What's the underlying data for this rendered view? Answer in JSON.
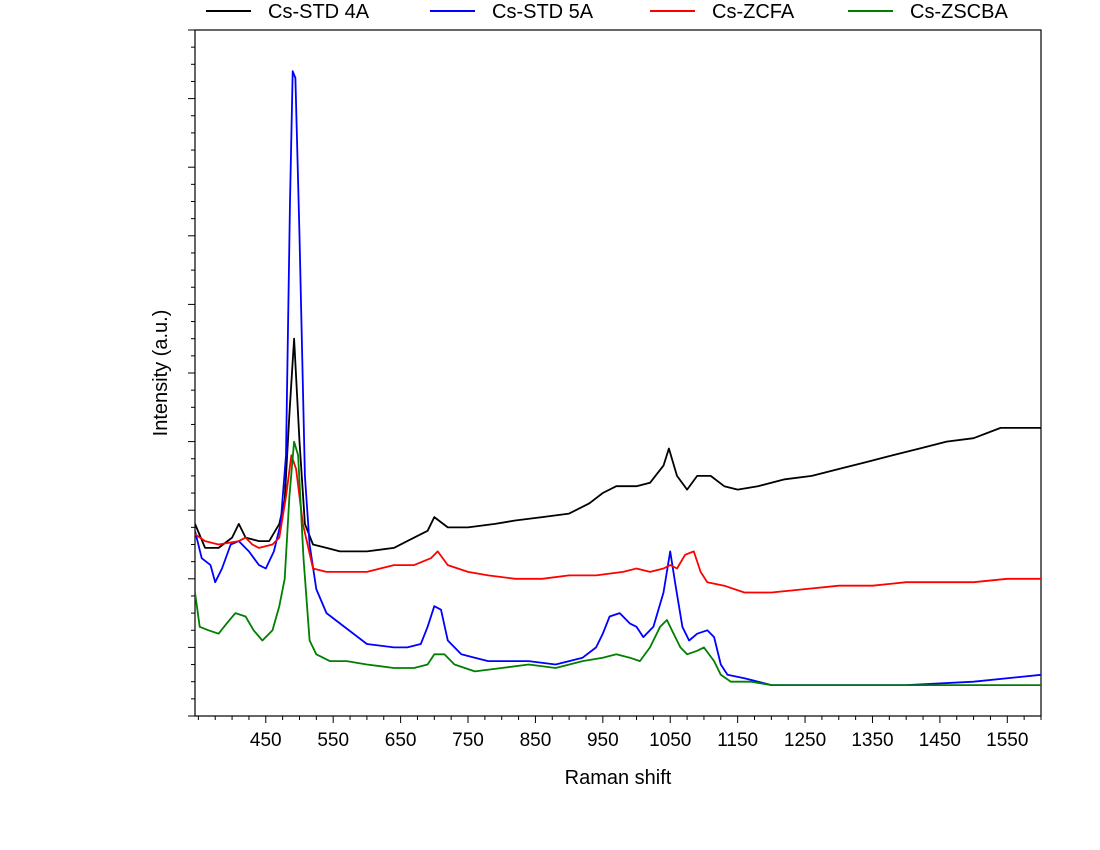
{
  "chart_data": {
    "type": "line",
    "xlabel": "Raman shift",
    "ylabel": "Intensity (a.u.)",
    "xlim": [
      345,
      1600
    ],
    "ylim": [
      0,
      100
    ],
    "x_ticks": [
      450,
      550,
      650,
      750,
      850,
      950,
      1050,
      1150,
      1250,
      1350,
      1450,
      1550
    ],
    "x_tick_labels": [
      "450",
      "550",
      "650",
      "750",
      "850",
      "950",
      "1050",
      "1150",
      "1250",
      "1350",
      "1450",
      "1550"
    ],
    "y_tick_labels": "none",
    "grid": false,
    "legend_position": "top",
    "series": [
      {
        "name": "Cs-STD 4A",
        "color": "#000000",
        "points": [
          [
            345,
            28
          ],
          [
            360,
            24.5
          ],
          [
            380,
            24.5
          ],
          [
            400,
            26
          ],
          [
            410,
            28
          ],
          [
            420,
            26
          ],
          [
            440,
            25.5
          ],
          [
            455,
            25.5
          ],
          [
            470,
            28
          ],
          [
            478,
            31.5
          ],
          [
            485,
            44
          ],
          [
            492,
            55
          ],
          [
            500,
            40
          ],
          [
            508,
            28
          ],
          [
            520,
            25
          ],
          [
            540,
            24.5
          ],
          [
            560,
            24
          ],
          [
            600,
            24
          ],
          [
            640,
            24.5
          ],
          [
            660,
            25.5
          ],
          [
            690,
            27
          ],
          [
            700,
            29
          ],
          [
            720,
            27.5
          ],
          [
            750,
            27.5
          ],
          [
            790,
            28
          ],
          [
            820,
            28.5
          ],
          [
            860,
            29
          ],
          [
            900,
            29.5
          ],
          [
            930,
            31
          ],
          [
            950,
            32.5
          ],
          [
            970,
            33.5
          ],
          [
            1000,
            33.5
          ],
          [
            1020,
            34
          ],
          [
            1040,
            36.5
          ],
          [
            1048,
            39
          ],
          [
            1060,
            35
          ],
          [
            1075,
            33
          ],
          [
            1090,
            35
          ],
          [
            1110,
            35
          ],
          [
            1130,
            33.5
          ],
          [
            1150,
            33
          ],
          [
            1180,
            33.5
          ],
          [
            1220,
            34.5
          ],
          [
            1260,
            35
          ],
          [
            1300,
            36
          ],
          [
            1340,
            37
          ],
          [
            1380,
            38
          ],
          [
            1420,
            39
          ],
          [
            1460,
            40
          ],
          [
            1500,
            40.5
          ],
          [
            1540,
            42
          ],
          [
            1570,
            42
          ],
          [
            1600,
            42
          ]
        ]
      },
      {
        "name": "Cs-STD 5A",
        "color": "#0000ff",
        "points": [
          [
            345,
            27
          ],
          [
            355,
            23
          ],
          [
            368,
            22
          ],
          [
            375,
            19.5
          ],
          [
            385,
            21.5
          ],
          [
            398,
            25
          ],
          [
            410,
            25.5
          ],
          [
            425,
            24
          ],
          [
            440,
            22
          ],
          [
            450,
            21.5
          ],
          [
            462,
            24
          ],
          [
            472,
            28
          ],
          [
            480,
            38
          ],
          [
            486,
            75
          ],
          [
            490,
            94
          ],
          [
            494,
            93
          ],
          [
            500,
            70
          ],
          [
            508,
            35
          ],
          [
            515,
            25
          ],
          [
            525,
            18.5
          ],
          [
            540,
            15
          ],
          [
            560,
            13.5
          ],
          [
            600,
            10.5
          ],
          [
            640,
            10
          ],
          [
            660,
            10
          ],
          [
            680,
            10.5
          ],
          [
            690,
            13
          ],
          [
            700,
            16
          ],
          [
            710,
            15.5
          ],
          [
            720,
            11
          ],
          [
            740,
            9
          ],
          [
            760,
            8.5
          ],
          [
            780,
            8
          ],
          [
            800,
            8
          ],
          [
            840,
            8
          ],
          [
            880,
            7.5
          ],
          [
            900,
            8
          ],
          [
            920,
            8.5
          ],
          [
            940,
            10
          ],
          [
            950,
            12
          ],
          [
            960,
            14.5
          ],
          [
            975,
            15
          ],
          [
            990,
            13.5
          ],
          [
            1000,
            13
          ],
          [
            1010,
            11.5
          ],
          [
            1025,
            13
          ],
          [
            1040,
            18
          ],
          [
            1050,
            24
          ],
          [
            1058,
            19
          ],
          [
            1068,
            13
          ],
          [
            1078,
            11
          ],
          [
            1090,
            12
          ],
          [
            1105,
            12.5
          ],
          [
            1115,
            11.5
          ],
          [
            1125,
            7.5
          ],
          [
            1135,
            6
          ],
          [
            1160,
            5.5
          ],
          [
            1200,
            4.5
          ],
          [
            1300,
            4.5
          ],
          [
            1400,
            4.5
          ],
          [
            1500,
            5
          ],
          [
            1600,
            6
          ]
        ]
      },
      {
        "name": "Cs-ZCFA",
        "color": "#ff0000",
        "points": [
          [
            345,
            26.5
          ],
          [
            360,
            25.5
          ],
          [
            380,
            25
          ],
          [
            410,
            25.5
          ],
          [
            420,
            26
          ],
          [
            430,
            25
          ],
          [
            440,
            24.5
          ],
          [
            460,
            25
          ],
          [
            470,
            26
          ],
          [
            480,
            32
          ],
          [
            488,
            38
          ],
          [
            495,
            36
          ],
          [
            505,
            28
          ],
          [
            520,
            21.5
          ],
          [
            540,
            21
          ],
          [
            560,
            21
          ],
          [
            600,
            21
          ],
          [
            640,
            22
          ],
          [
            670,
            22
          ],
          [
            695,
            23
          ],
          [
            705,
            24
          ],
          [
            720,
            22
          ],
          [
            750,
            21
          ],
          [
            780,
            20.5
          ],
          [
            820,
            20
          ],
          [
            860,
            20
          ],
          [
            900,
            20.5
          ],
          [
            940,
            20.5
          ],
          [
            980,
            21
          ],
          [
            1000,
            21.5
          ],
          [
            1020,
            21
          ],
          [
            1040,
            21.5
          ],
          [
            1050,
            22
          ],
          [
            1060,
            21.5
          ],
          [
            1072,
            23.5
          ],
          [
            1085,
            24
          ],
          [
            1095,
            21
          ],
          [
            1105,
            19.5
          ],
          [
            1130,
            19
          ],
          [
            1160,
            18
          ],
          [
            1200,
            18
          ],
          [
            1250,
            18.5
          ],
          [
            1300,
            19
          ],
          [
            1350,
            19
          ],
          [
            1400,
            19.5
          ],
          [
            1450,
            19.5
          ],
          [
            1500,
            19.5
          ],
          [
            1550,
            20
          ],
          [
            1600,
            20
          ]
        ]
      },
      {
        "name": "Cs-ZSCBA",
        "color": "#007f00",
        "points": [
          [
            345,
            18
          ],
          [
            352,
            13
          ],
          [
            365,
            12.5
          ],
          [
            380,
            12
          ],
          [
            392,
            13.5
          ],
          [
            405,
            15
          ],
          [
            420,
            14.5
          ],
          [
            432,
            12.5
          ],
          [
            445,
            11
          ],
          [
            460,
            12.5
          ],
          [
            470,
            16
          ],
          [
            478,
            20
          ],
          [
            485,
            32
          ],
          [
            492,
            40
          ],
          [
            498,
            38
          ],
          [
            506,
            23
          ],
          [
            515,
            11
          ],
          [
            525,
            9
          ],
          [
            545,
            8
          ],
          [
            570,
            8
          ],
          [
            600,
            7.5
          ],
          [
            640,
            7
          ],
          [
            670,
            7
          ],
          [
            690,
            7.5
          ],
          [
            700,
            9
          ],
          [
            715,
            9
          ],
          [
            730,
            7.5
          ],
          [
            760,
            6.5
          ],
          [
            800,
            7
          ],
          [
            840,
            7.5
          ],
          [
            880,
            7
          ],
          [
            920,
            8
          ],
          [
            950,
            8.5
          ],
          [
            970,
            9
          ],
          [
            990,
            8.5
          ],
          [
            1005,
            8
          ],
          [
            1020,
            10
          ],
          [
            1035,
            13
          ],
          [
            1045,
            14
          ],
          [
            1055,
            12
          ],
          [
            1065,
            10
          ],
          [
            1075,
            9
          ],
          [
            1090,
            9.5
          ],
          [
            1100,
            10
          ],
          [
            1115,
            8
          ],
          [
            1125,
            6
          ],
          [
            1140,
            5
          ],
          [
            1170,
            5
          ],
          [
            1200,
            4.5
          ],
          [
            1300,
            4.5
          ],
          [
            1400,
            4.5
          ],
          [
            1500,
            4.5
          ],
          [
            1550,
            4.5
          ],
          [
            1600,
            4.5
          ]
        ]
      }
    ]
  }
}
